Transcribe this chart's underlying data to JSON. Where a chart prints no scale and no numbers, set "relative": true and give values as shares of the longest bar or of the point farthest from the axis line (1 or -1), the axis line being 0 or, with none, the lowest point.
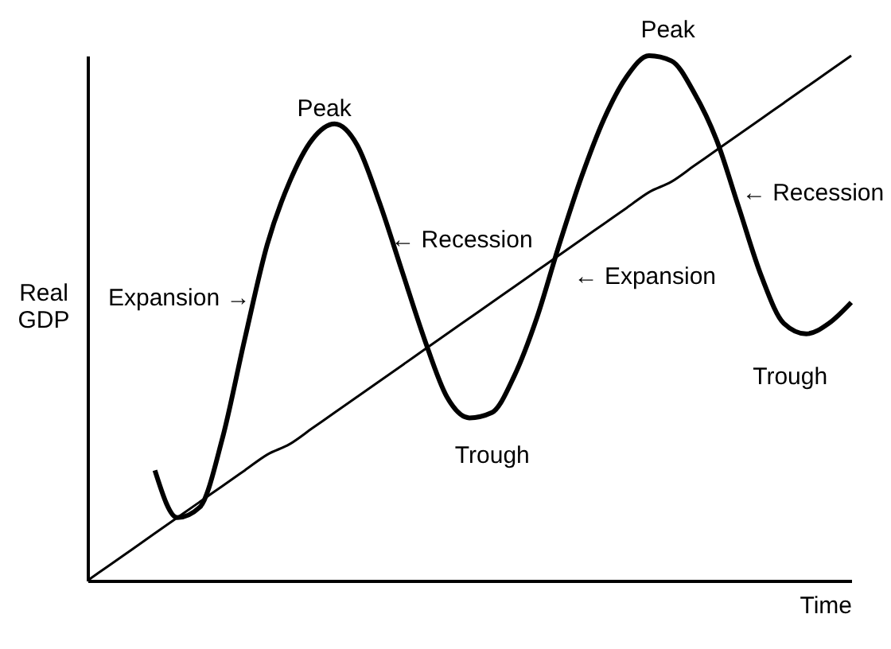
{
  "chart_data": {
    "type": "line",
    "relative": true,
    "xlabel": "Time",
    "ylabel": "Real GDP",
    "grid": false,
    "tick_labels": false,
    "categories": [
      null,
      null,
      null,
      null,
      null,
      null,
      null,
      null,
      null,
      null,
      null,
      null,
      null,
      null,
      null,
      null,
      null,
      null,
      null,
      null,
      null,
      null,
      null,
      null,
      null,
      null,
      null,
      null,
      null,
      null,
      null,
      null,
      null,
      null,
      null
    ],
    "series": [
      {
        "color": "#000000",
        "values": [
          null,
          null,
          null,
          0.21,
          0.12,
          0.14,
          0.27,
          0.46,
          0.64,
          0.76,
          0.84,
          0.87,
          0.83,
          0.72,
          0.59,
          0.46,
          0.35,
          0.31,
          0.32,
          0.39,
          0.5,
          0.64,
          0.77,
          0.88,
          0.96,
          1.0,
          0.99,
          0.93,
          0.84,
          0.71,
          0.58,
          0.49,
          0.47,
          0.49,
          0.53
        ]
      },
      {
        "color": "#000000",
        "values": [
          0,
          0.03,
          0.06,
          0.09,
          0.12,
          0.15,
          0.18,
          0.21,
          0.24,
          0.26,
          0.29,
          0.32,
          0.35,
          0.38,
          0.41,
          0.44,
          0.47,
          0.5,
          0.53,
          0.56,
          0.59,
          0.62,
          0.65,
          0.68,
          0.71,
          0.74,
          0.76,
          0.79,
          0.82,
          0.85,
          0.88,
          0.91,
          0.94,
          0.97,
          1.0
        ]
      }
    ],
    "annotations": [
      "Peak",
      "← Recession",
      "Expansion →",
      "Trough",
      "← Expansion",
      "Peak",
      "← Recession",
      "Trough"
    ]
  }
}
